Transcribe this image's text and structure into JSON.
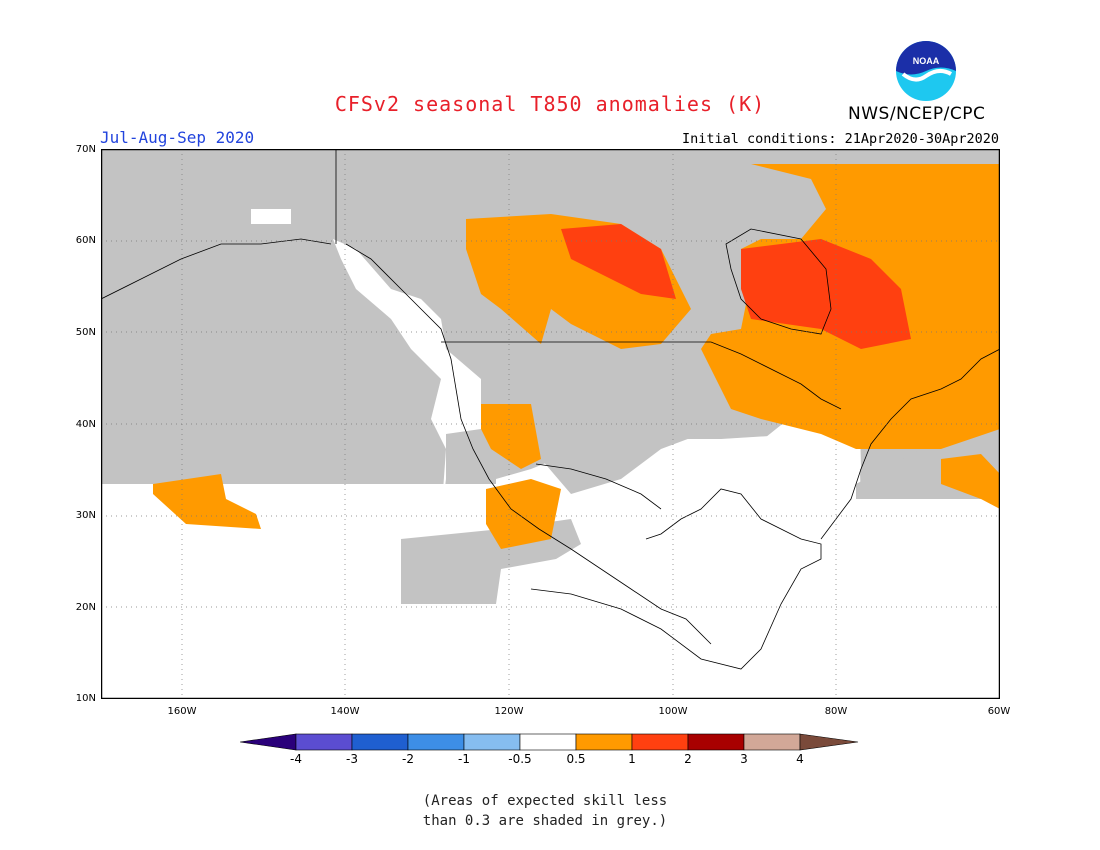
{
  "title": "CFSv2 seasonal T850 anomalies (K)",
  "agency": "NWS/NCEP/CPC",
  "logo_text": "NOAA",
  "season": "Jul-Aug-Sep 2020",
  "initial_conditions": "Initial conditions: 21Apr2020-30Apr2020",
  "lat_labels": [
    "70N",
    "60N",
    "50N",
    "40N",
    "30N",
    "20N",
    "10N"
  ],
  "lon_labels": [
    "160W",
    "140W",
    "120W",
    "100W",
    "80W",
    "60W"
  ],
  "colorbar": {
    "ticks": [
      "-4",
      "-3",
      "-2",
      "-1",
      "-0.5",
      "0.5",
      "1",
      "2",
      "3",
      "4"
    ],
    "colors": [
      "#2a007a",
      "#5b4dd1",
      "#1f5fd0",
      "#3d8ee6",
      "#86bdf0",
      "#ffffff",
      "#ff9a00",
      "#ff4010",
      "#a80000",
      "#d2a898",
      "#7a4a3a"
    ]
  },
  "note_line1": "(Areas of expected skill less",
  "note_line2": "than 0.3 are shaded in grey.)",
  "colors": {
    "grey": "#c3c3c3",
    "orange": "#ff9a00",
    "red": "#ff4010",
    "title": "#e8202a",
    "season": "#2244dd"
  }
}
